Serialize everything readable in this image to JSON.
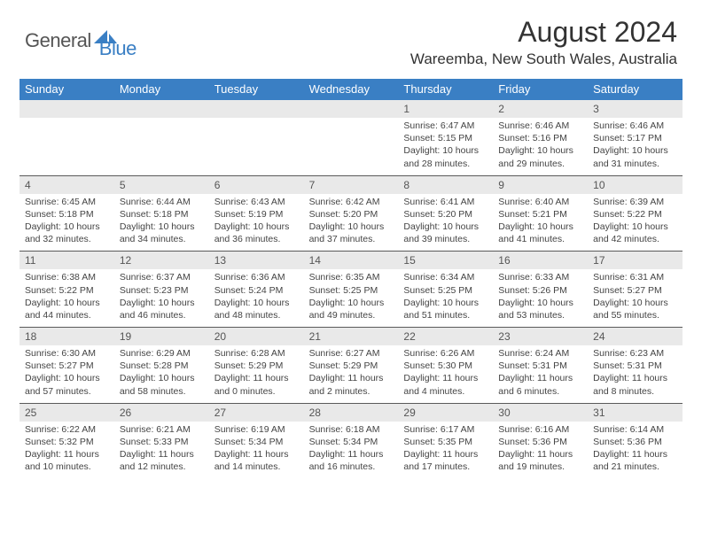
{
  "brand": {
    "text1": "General",
    "text2": "Blue",
    "logo_color": "#3a7fc4"
  },
  "header": {
    "month_title": "August 2024",
    "location": "Wareemba, New South Wales, Australia"
  },
  "style": {
    "header_bg": "#3a7fc4",
    "header_text": "#ffffff",
    "numrow_bg": "#e9e9e9",
    "cell_text": "#444444",
    "divider": "#5a5a5a",
    "title_fontsize": 32,
    "location_fontsize": 17,
    "dayhead_fontsize": 13,
    "daynum_fontsize": 12,
    "body_fontsize": 10.5
  },
  "day_names": [
    "Sunday",
    "Monday",
    "Tuesday",
    "Wednesday",
    "Thursday",
    "Friday",
    "Saturday"
  ],
  "weeks": [
    {
      "nums": [
        "",
        "",
        "",
        "",
        "1",
        "2",
        "3"
      ],
      "cells": [
        "",
        "",
        "",
        "",
        "Sunrise: 6:47 AM\nSunset: 5:15 PM\nDaylight: 10 hours and 28 minutes.",
        "Sunrise: 6:46 AM\nSunset: 5:16 PM\nDaylight: 10 hours and 29 minutes.",
        "Sunrise: 6:46 AM\nSunset: 5:17 PM\nDaylight: 10 hours and 31 minutes."
      ]
    },
    {
      "nums": [
        "4",
        "5",
        "6",
        "7",
        "8",
        "9",
        "10"
      ],
      "cells": [
        "Sunrise: 6:45 AM\nSunset: 5:18 PM\nDaylight: 10 hours and 32 minutes.",
        "Sunrise: 6:44 AM\nSunset: 5:18 PM\nDaylight: 10 hours and 34 minutes.",
        "Sunrise: 6:43 AM\nSunset: 5:19 PM\nDaylight: 10 hours and 36 minutes.",
        "Sunrise: 6:42 AM\nSunset: 5:20 PM\nDaylight: 10 hours and 37 minutes.",
        "Sunrise: 6:41 AM\nSunset: 5:20 PM\nDaylight: 10 hours and 39 minutes.",
        "Sunrise: 6:40 AM\nSunset: 5:21 PM\nDaylight: 10 hours and 41 minutes.",
        "Sunrise: 6:39 AM\nSunset: 5:22 PM\nDaylight: 10 hours and 42 minutes."
      ]
    },
    {
      "nums": [
        "11",
        "12",
        "13",
        "14",
        "15",
        "16",
        "17"
      ],
      "cells": [
        "Sunrise: 6:38 AM\nSunset: 5:22 PM\nDaylight: 10 hours and 44 minutes.",
        "Sunrise: 6:37 AM\nSunset: 5:23 PM\nDaylight: 10 hours and 46 minutes.",
        "Sunrise: 6:36 AM\nSunset: 5:24 PM\nDaylight: 10 hours and 48 minutes.",
        "Sunrise: 6:35 AM\nSunset: 5:25 PM\nDaylight: 10 hours and 49 minutes.",
        "Sunrise: 6:34 AM\nSunset: 5:25 PM\nDaylight: 10 hours and 51 minutes.",
        "Sunrise: 6:33 AM\nSunset: 5:26 PM\nDaylight: 10 hours and 53 minutes.",
        "Sunrise: 6:31 AM\nSunset: 5:27 PM\nDaylight: 10 hours and 55 minutes."
      ]
    },
    {
      "nums": [
        "18",
        "19",
        "20",
        "21",
        "22",
        "23",
        "24"
      ],
      "cells": [
        "Sunrise: 6:30 AM\nSunset: 5:27 PM\nDaylight: 10 hours and 57 minutes.",
        "Sunrise: 6:29 AM\nSunset: 5:28 PM\nDaylight: 10 hours and 58 minutes.",
        "Sunrise: 6:28 AM\nSunset: 5:29 PM\nDaylight: 11 hours and 0 minutes.",
        "Sunrise: 6:27 AM\nSunset: 5:29 PM\nDaylight: 11 hours and 2 minutes.",
        "Sunrise: 6:26 AM\nSunset: 5:30 PM\nDaylight: 11 hours and 4 minutes.",
        "Sunrise: 6:24 AM\nSunset: 5:31 PM\nDaylight: 11 hours and 6 minutes.",
        "Sunrise: 6:23 AM\nSunset: 5:31 PM\nDaylight: 11 hours and 8 minutes."
      ]
    },
    {
      "nums": [
        "25",
        "26",
        "27",
        "28",
        "29",
        "30",
        "31"
      ],
      "cells": [
        "Sunrise: 6:22 AM\nSunset: 5:32 PM\nDaylight: 11 hours and 10 minutes.",
        "Sunrise: 6:21 AM\nSunset: 5:33 PM\nDaylight: 11 hours and 12 minutes.",
        "Sunrise: 6:19 AM\nSunset: 5:34 PM\nDaylight: 11 hours and 14 minutes.",
        "Sunrise: 6:18 AM\nSunset: 5:34 PM\nDaylight: 11 hours and 16 minutes.",
        "Sunrise: 6:17 AM\nSunset: 5:35 PM\nDaylight: 11 hours and 17 minutes.",
        "Sunrise: 6:16 AM\nSunset: 5:36 PM\nDaylight: 11 hours and 19 minutes.",
        "Sunrise: 6:14 AM\nSunset: 5:36 PM\nDaylight: 11 hours and 21 minutes."
      ]
    }
  ]
}
